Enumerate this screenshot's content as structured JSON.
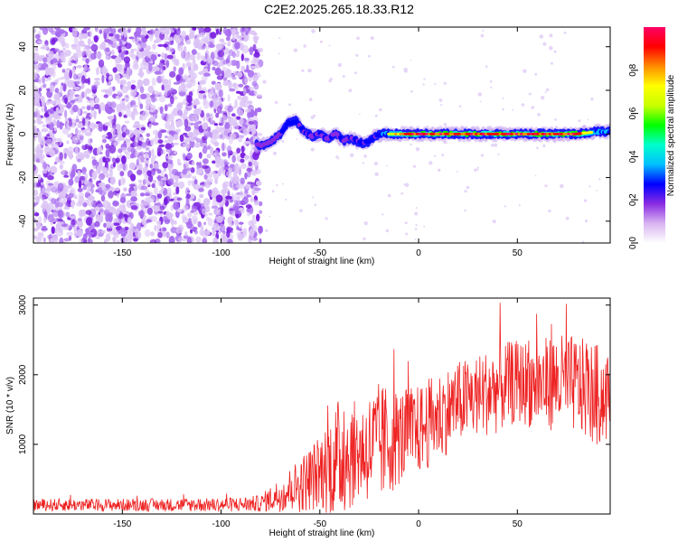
{
  "title": "C2E2.2025.265.18.33.R12",
  "chart_data": [
    {
      "type": "heatmap",
      "xlabel": "Height of straight line (km)",
      "ylabel": "Frequency (Hz)",
      "xlim": [
        -195,
        97
      ],
      "ylim": [
        -50,
        49
      ],
      "xticks": [
        -150,
        -100,
        -50,
        0,
        50
      ],
      "yticks": [
        -40,
        -20,
        0,
        20,
        40
      ],
      "noise_region_x": [
        -195,
        -80
      ],
      "ridge": {
        "x": [
          -82,
          -78,
          -74,
          -70,
          -66,
          -62,
          -58,
          -54,
          -50,
          -46,
          -42,
          -38,
          -34,
          -30,
          -26,
          -22,
          -18,
          -14,
          -10,
          -5,
          0,
          10,
          20,
          30,
          40,
          50,
          60,
          70,
          80,
          90,
          97
        ],
        "freq": [
          -5,
          -5,
          -3,
          0,
          5,
          6,
          1,
          -1,
          0,
          -2,
          0,
          -3,
          -2,
          -4,
          -4,
          -1,
          0,
          0,
          0,
          0,
          0,
          0,
          0,
          0,
          0,
          0,
          0,
          0,
          0,
          1,
          1
        ],
        "amplitude": [
          0.3,
          0.35,
          0.35,
          0.4,
          0.55,
          0.55,
          0.4,
          0.45,
          0.4,
          0.45,
          0.35,
          0.45,
          0.4,
          0.45,
          0.45,
          0.45,
          0.6,
          0.75,
          0.8,
          0.95,
          0.95,
          0.95,
          0.95,
          0.95,
          0.95,
          0.95,
          0.95,
          0.95,
          0.95,
          0.65,
          0.55
        ]
      },
      "colorbar": {
        "label": "Normalized spectral amplitude",
        "range": [
          0,
          1
        ],
        "ticks": [
          0.0,
          0.2,
          0.4,
          0.6,
          0.8
        ],
        "colors": [
          "#ffffff",
          "#d8b4f0",
          "#8a2be2",
          "#0000ff",
          "#00bfff",
          "#00ffcc",
          "#00ff00",
          "#c8ff00",
          "#ffff00",
          "#ff8c00",
          "#ff0000",
          "#ff0066"
        ]
      }
    },
    {
      "type": "line",
      "xlabel": "Height of straight line (km)",
      "ylabel": "SNR (10 * v/v)",
      "xlim": [
        -195,
        97
      ],
      "ylim": [
        0,
        3100
      ],
      "xticks": [
        -150,
        -100,
        -50,
        0,
        50
      ],
      "yticks": [
        1000,
        2000,
        3000
      ],
      "color": "#ee2222",
      "envelope": {
        "x": [
          -195,
          -150,
          -100,
          -80,
          -70,
          -60,
          -50,
          -40,
          -30,
          -20,
          -10,
          0,
          10,
          20,
          30,
          40,
          50,
          60,
          70,
          80,
          90,
          97
        ],
        "mean": [
          130,
          130,
          130,
          150,
          280,
          420,
          600,
          800,
          900,
          1000,
          1100,
          1200,
          1400,
          1600,
          1700,
          1800,
          1900,
          1850,
          1900,
          1850,
          1700,
          1700
        ],
        "spread": [
          90,
          90,
          100,
          120,
          250,
          400,
          550,
          900,
          700,
          900,
          700,
          650,
          650,
          600,
          600,
          650,
          600,
          650,
          700,
          700,
          750,
          650
        ]
      }
    }
  ]
}
